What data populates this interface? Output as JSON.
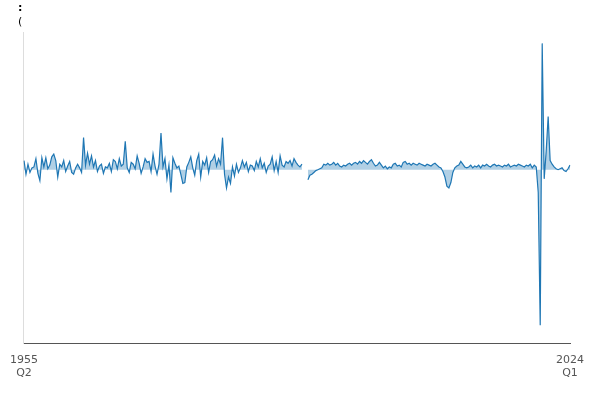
{
  "chart_data": {
    "type": "line",
    "title": ":",
    "subtitle": "(",
    "categories": [
      "1955 Q2",
      null,
      null,
      null,
      null,
      null,
      null,
      null,
      null,
      null,
      null,
      null,
      null,
      null,
      null,
      null,
      null,
      null,
      null,
      null,
      null,
      null,
      null,
      null,
      null,
      null,
      null,
      null,
      null,
      null,
      null,
      null,
      null,
      null,
      null,
      null,
      null,
      null,
      null,
      null,
      null,
      null,
      null,
      null,
      null,
      null,
      null,
      null,
      null,
      null,
      null,
      null,
      null,
      null,
      null,
      null,
      null,
      null,
      null,
      null,
      null,
      null,
      null,
      null,
      null,
      null,
      null,
      null,
      null,
      null,
      null,
      null,
      null,
      null,
      null,
      null,
      null,
      null,
      null,
      null,
      null,
      null,
      null,
      null,
      null,
      null,
      null,
      null,
      null,
      null,
      null,
      null,
      null,
      null,
      null,
      null,
      null,
      null,
      null,
      null,
      null,
      null,
      null,
      null,
      null,
      null,
      null,
      null,
      null,
      null,
      null,
      null,
      null,
      null,
      null,
      null,
      null,
      null,
      null,
      null,
      null,
      null,
      null,
      null,
      null,
      null,
      null,
      null,
      null,
      null,
      null,
      null,
      null,
      null,
      null,
      null,
      null,
      null,
      null,
      null,
      null,
      null,
      null,
      null,
      null,
      null,
      null,
      null,
      null,
      null,
      null,
      null,
      null,
      null,
      null,
      null,
      null,
      null,
      null,
      null,
      null,
      null,
      null,
      null,
      null,
      null,
      null,
      null,
      null,
      null,
      null,
      null,
      null,
      null,
      null,
      null,
      null,
      null,
      null,
      null,
      null,
      null,
      null,
      null,
      null,
      null,
      null,
      null,
      null,
      null,
      null,
      null,
      null,
      null,
      null,
      null,
      null,
      null,
      null,
      null,
      null,
      null,
      null,
      null,
      null,
      null,
      null,
      null,
      null,
      null,
      null,
      null,
      null,
      null,
      null,
      null,
      null,
      null,
      null,
      null,
      null,
      null,
      null,
      null,
      null,
      null,
      null,
      null,
      null,
      null,
      null,
      null,
      null,
      null,
      null,
      null,
      null,
      null,
      null,
      null,
      null,
      null,
      null,
      null,
      null,
      null,
      null,
      null,
      null,
      null,
      null,
      null,
      null,
      null,
      null,
      null,
      null,
      null,
      null,
      null,
      null,
      null,
      null,
      null,
      null,
      null,
      null,
      null,
      null,
      null,
      null,
      null,
      null,
      null,
      null,
      "2024 Q1"
    ],
    "values": [
      1.0,
      -0.5,
      0.6,
      -0.3,
      0.2,
      0.3,
      1.2,
      -0.4,
      -1.2,
      1.3,
      0.3,
      1.3,
      0.1,
      0.5,
      1.4,
      1.7,
      1.0,
      -0.8,
      0.6,
      0.3,
      1.0,
      -0.2,
      0.4,
      0.9,
      -0.3,
      -0.5,
      0.2,
      0.6,
      0.2,
      -0.3,
      3.5,
      0.5,
      1.8,
      0.6,
      1.5,
      0.3,
      1.0,
      -0.2,
      0.4,
      0.6,
      -0.4,
      0.3,
      0.2,
      0.7,
      -0.2,
      1.1,
      0.9,
      0.1,
      1.2,
      0.4,
      0.6,
      3.1,
      0.2,
      -0.3,
      0.8,
      0.6,
      0.1,
      1.5,
      0.7,
      -0.4,
      0.3,
      1.2,
      0.8,
      0.9,
      -0.2,
      1.7,
      0.4,
      -0.5,
      0.6,
      4.0,
      0.3,
      1.2,
      -1.0,
      0.5,
      -2.5,
      1.3,
      0.7,
      0.2,
      0.4,
      -0.5,
      -1.5,
      -1.4,
      0.3,
      0.8,
      1.4,
      0.2,
      -0.6,
      1.0,
      1.7,
      -0.8,
      0.9,
      0.5,
      1.3,
      -0.3,
      0.9,
      1.1,
      1.6,
      0.4,
      1.2,
      0.6,
      3.5,
      -0.5,
      -2.0,
      -0.8,
      -1.5,
      0.3,
      -0.7,
      0.6,
      -0.3,
      0.2,
      1.0,
      0.3,
      0.8,
      -0.2,
      0.5,
      0.4,
      -0.1,
      0.9,
      0.3,
      1.2,
      0.2,
      0.7,
      -0.3,
      0.4,
      0.6,
      1.4,
      -0.1,
      0.9,
      -0.3,
      1.5,
      0.5,
      0.3,
      0.9,
      0.7,
      1.0,
      0.4,
      1.2,
      0.8,
      0.5,
      0.3,
      0.6,
      null,
      null,
      -1.1,
      -0.6,
      -0.5,
      -0.3,
      -0.1,
      0.0,
      0.1,
      0.2,
      0.6,
      0.5,
      0.7,
      0.5,
      0.6,
      0.8,
      0.5,
      0.7,
      0.4,
      0.3,
      0.5,
      0.4,
      0.6,
      0.7,
      0.5,
      0.7,
      0.8,
      0.6,
      0.9,
      0.7,
      1.0,
      0.8,
      0.6,
      0.9,
      1.1,
      0.7,
      0.4,
      0.5,
      0.8,
      0.5,
      0.2,
      0.4,
      0.1,
      0.3,
      0.2,
      0.6,
      0.7,
      0.4,
      0.5,
      0.3,
      0.8,
      0.9,
      0.6,
      0.7,
      0.5,
      0.7,
      0.6,
      0.5,
      0.7,
      0.6,
      0.5,
      0.4,
      0.6,
      0.5,
      0.4,
      0.6,
      0.7,
      0.5,
      0.3,
      0.2,
      -0.2,
      -0.8,
      -1.8,
      -2.0,
      -1.4,
      -0.3,
      0.2,
      0.4,
      0.5,
      0.9,
      0.6,
      0.3,
      0.2,
      0.3,
      0.5,
      0.2,
      0.4,
      0.3,
      0.5,
      0.2,
      0.5,
      0.4,
      0.6,
      0.4,
      0.3,
      0.5,
      0.6,
      0.4,
      0.5,
      0.4,
      0.3,
      0.5,
      0.4,
      0.6,
      0.3,
      0.4,
      0.5,
      0.4,
      0.6,
      0.5,
      0.4,
      0.3,
      0.5,
      0.4,
      0.6,
      0.2,
      0.5,
      0.3,
      -2.5,
      -17.0,
      13.8,
      -1.0,
      2.0,
      5.8,
      1.0,
      0.6,
      0.3,
      0.1,
      0.0,
      0.1,
      0.2,
      -0.1,
      -0.2,
      0.1,
      0.5
    ],
    "color": "#1f77b4",
    "ylim": [
      -19,
      15
    ],
    "grid": false,
    "tick_labels": "x"
  }
}
